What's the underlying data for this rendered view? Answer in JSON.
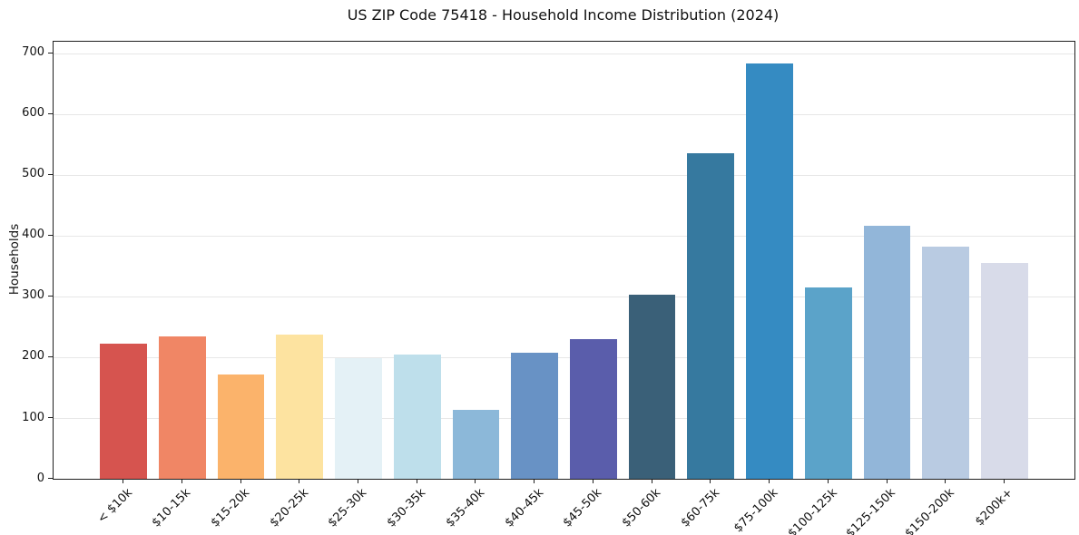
{
  "chart_data": {
    "type": "bar",
    "title": "US ZIP Code 75418 - Household Income Distribution (2024)",
    "xlabel": "",
    "ylabel": "Households",
    "categories": [
      "< $10k",
      "$10-15k",
      "$15-20k",
      "$20-25k",
      "$25-30k",
      "$30-35k",
      "$35-40k",
      "$40-45k",
      "$45-50k",
      "$50-60k",
      "$60-75k",
      "$75-100k",
      "$100-125k",
      "$125-150k",
      "$150-200k",
      "$200k+"
    ],
    "values": [
      223,
      235,
      171,
      237,
      199,
      205,
      113,
      207,
      230,
      303,
      536,
      683,
      315,
      416,
      382,
      355
    ],
    "bar_colors": [
      "#d6544f",
      "#f08665",
      "#fbb36b",
      "#fde3a0",
      "#e4f1f6",
      "#bedfeb",
      "#8cb8d9",
      "#6892c5",
      "#5a5dab",
      "#3a6078",
      "#36799f",
      "#358bc2",
      "#5ba3c9",
      "#92b6d9",
      "#b9cbe2",
      "#d8dbe9"
    ],
    "yticks": [
      0,
      100,
      200,
      300,
      400,
      500,
      600,
      700
    ],
    "ylim": [
      0,
      719
    ],
    "grid": "horizontal-only",
    "gridline_color": "#e7e7e7",
    "legend_position": "none"
  }
}
